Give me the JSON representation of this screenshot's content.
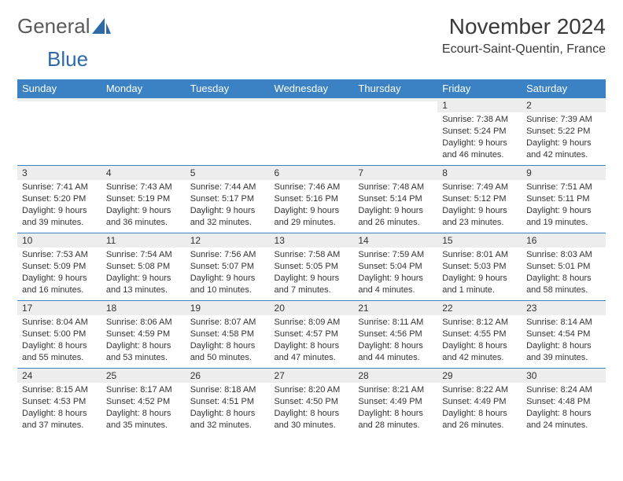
{
  "brand": {
    "part1": "General",
    "part2": "Blue"
  },
  "title": "November 2024",
  "location": "Ecourt-Saint-Quentin, France",
  "colors": {
    "header_bg": "#3b82c4",
    "header_fg": "#ffffff",
    "daynum_bg": "#ededed",
    "text": "#333333",
    "brand_gray": "#5a5a5a",
    "brand_blue": "#2f6aa8"
  },
  "font": {
    "family": "Arial",
    "cell_fontsize": 11,
    "header_fontsize": 13,
    "title_fontsize": 28,
    "location_fontsize": 16
  },
  "day_headers": [
    "Sunday",
    "Monday",
    "Tuesday",
    "Wednesday",
    "Thursday",
    "Friday",
    "Saturday"
  ],
  "weeks": [
    [
      {
        "day": "",
        "lines": [
          "",
          "",
          "",
          ""
        ]
      },
      {
        "day": "",
        "lines": [
          "",
          "",
          "",
          ""
        ]
      },
      {
        "day": "",
        "lines": [
          "",
          "",
          "",
          ""
        ]
      },
      {
        "day": "",
        "lines": [
          "",
          "",
          "",
          ""
        ]
      },
      {
        "day": "",
        "lines": [
          "",
          "",
          "",
          ""
        ]
      },
      {
        "day": "1",
        "lines": [
          "Sunrise: 7:38 AM",
          "Sunset: 5:24 PM",
          "Daylight: 9 hours",
          "and 46 minutes."
        ]
      },
      {
        "day": "2",
        "lines": [
          "Sunrise: 7:39 AM",
          "Sunset: 5:22 PM",
          "Daylight: 9 hours",
          "and 42 minutes."
        ]
      }
    ],
    [
      {
        "day": "3",
        "lines": [
          "Sunrise: 7:41 AM",
          "Sunset: 5:20 PM",
          "Daylight: 9 hours",
          "and 39 minutes."
        ]
      },
      {
        "day": "4",
        "lines": [
          "Sunrise: 7:43 AM",
          "Sunset: 5:19 PM",
          "Daylight: 9 hours",
          "and 36 minutes."
        ]
      },
      {
        "day": "5",
        "lines": [
          "Sunrise: 7:44 AM",
          "Sunset: 5:17 PM",
          "Daylight: 9 hours",
          "and 32 minutes."
        ]
      },
      {
        "day": "6",
        "lines": [
          "Sunrise: 7:46 AM",
          "Sunset: 5:16 PM",
          "Daylight: 9 hours",
          "and 29 minutes."
        ]
      },
      {
        "day": "7",
        "lines": [
          "Sunrise: 7:48 AM",
          "Sunset: 5:14 PM",
          "Daylight: 9 hours",
          "and 26 minutes."
        ]
      },
      {
        "day": "8",
        "lines": [
          "Sunrise: 7:49 AM",
          "Sunset: 5:12 PM",
          "Daylight: 9 hours",
          "and 23 minutes."
        ]
      },
      {
        "day": "9",
        "lines": [
          "Sunrise: 7:51 AM",
          "Sunset: 5:11 PM",
          "Daylight: 9 hours",
          "and 19 minutes."
        ]
      }
    ],
    [
      {
        "day": "10",
        "lines": [
          "Sunrise: 7:53 AM",
          "Sunset: 5:09 PM",
          "Daylight: 9 hours",
          "and 16 minutes."
        ]
      },
      {
        "day": "11",
        "lines": [
          "Sunrise: 7:54 AM",
          "Sunset: 5:08 PM",
          "Daylight: 9 hours",
          "and 13 minutes."
        ]
      },
      {
        "day": "12",
        "lines": [
          "Sunrise: 7:56 AM",
          "Sunset: 5:07 PM",
          "Daylight: 9 hours",
          "and 10 minutes."
        ]
      },
      {
        "day": "13",
        "lines": [
          "Sunrise: 7:58 AM",
          "Sunset: 5:05 PM",
          "Daylight: 9 hours",
          "and 7 minutes."
        ]
      },
      {
        "day": "14",
        "lines": [
          "Sunrise: 7:59 AM",
          "Sunset: 5:04 PM",
          "Daylight: 9 hours",
          "and 4 minutes."
        ]
      },
      {
        "day": "15",
        "lines": [
          "Sunrise: 8:01 AM",
          "Sunset: 5:03 PM",
          "Daylight: 9 hours",
          "and 1 minute."
        ]
      },
      {
        "day": "16",
        "lines": [
          "Sunrise: 8:03 AM",
          "Sunset: 5:01 PM",
          "Daylight: 8 hours",
          "and 58 minutes."
        ]
      }
    ],
    [
      {
        "day": "17",
        "lines": [
          "Sunrise: 8:04 AM",
          "Sunset: 5:00 PM",
          "Daylight: 8 hours",
          "and 55 minutes."
        ]
      },
      {
        "day": "18",
        "lines": [
          "Sunrise: 8:06 AM",
          "Sunset: 4:59 PM",
          "Daylight: 8 hours",
          "and 53 minutes."
        ]
      },
      {
        "day": "19",
        "lines": [
          "Sunrise: 8:07 AM",
          "Sunset: 4:58 PM",
          "Daylight: 8 hours",
          "and 50 minutes."
        ]
      },
      {
        "day": "20",
        "lines": [
          "Sunrise: 8:09 AM",
          "Sunset: 4:57 PM",
          "Daylight: 8 hours",
          "and 47 minutes."
        ]
      },
      {
        "day": "21",
        "lines": [
          "Sunrise: 8:11 AM",
          "Sunset: 4:56 PM",
          "Daylight: 8 hours",
          "and 44 minutes."
        ]
      },
      {
        "day": "22",
        "lines": [
          "Sunrise: 8:12 AM",
          "Sunset: 4:55 PM",
          "Daylight: 8 hours",
          "and 42 minutes."
        ]
      },
      {
        "day": "23",
        "lines": [
          "Sunrise: 8:14 AM",
          "Sunset: 4:54 PM",
          "Daylight: 8 hours",
          "and 39 minutes."
        ]
      }
    ],
    [
      {
        "day": "24",
        "lines": [
          "Sunrise: 8:15 AM",
          "Sunset: 4:53 PM",
          "Daylight: 8 hours",
          "and 37 minutes."
        ]
      },
      {
        "day": "25",
        "lines": [
          "Sunrise: 8:17 AM",
          "Sunset: 4:52 PM",
          "Daylight: 8 hours",
          "and 35 minutes."
        ]
      },
      {
        "day": "26",
        "lines": [
          "Sunrise: 8:18 AM",
          "Sunset: 4:51 PM",
          "Daylight: 8 hours",
          "and 32 minutes."
        ]
      },
      {
        "day": "27",
        "lines": [
          "Sunrise: 8:20 AM",
          "Sunset: 4:50 PM",
          "Daylight: 8 hours",
          "and 30 minutes."
        ]
      },
      {
        "day": "28",
        "lines": [
          "Sunrise: 8:21 AM",
          "Sunset: 4:49 PM",
          "Daylight: 8 hours",
          "and 28 minutes."
        ]
      },
      {
        "day": "29",
        "lines": [
          "Sunrise: 8:22 AM",
          "Sunset: 4:49 PM",
          "Daylight: 8 hours",
          "and 26 minutes."
        ]
      },
      {
        "day": "30",
        "lines": [
          "Sunrise: 8:24 AM",
          "Sunset: 4:48 PM",
          "Daylight: 8 hours",
          "and 24 minutes."
        ]
      }
    ]
  ]
}
